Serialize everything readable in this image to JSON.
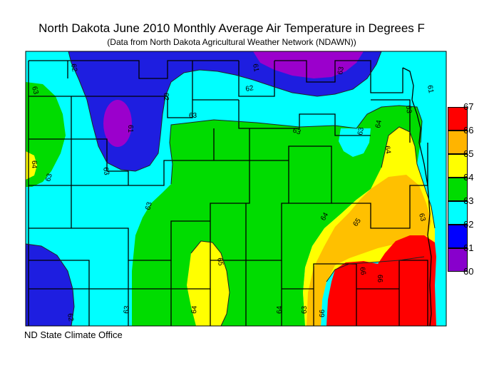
{
  "title": "North Dakota June 2010 Monthly Average Air Temperature in Degrees F",
  "subtitle": "(Data from North Dakota Agricultural Weather Network (NDAWN))",
  "credit": "ND State Climate Office",
  "legend": {
    "ticks": [
      "67",
      "66",
      "65",
      "64",
      "63",
      "62",
      "61",
      "60"
    ],
    "colors": [
      "#ff0000",
      "#ffb400",
      "#ffff00",
      "#00dc00",
      "#00ffff",
      "#0000ff",
      "#8800cc"
    ]
  },
  "contour_labels": [
    "62",
    "63",
    "63",
    "61",
    "62",
    "61",
    "63",
    "62",
    "61",
    "64",
    "63",
    "63",
    "63",
    "63",
    "63",
    "64",
    "63",
    "64",
    "65",
    "65",
    "66",
    "66",
    "64",
    "63",
    "62",
    "63",
    "64",
    "64",
    "63",
    "66"
  ],
  "zone_colors": {
    "z60": "#9b00cc",
    "z61": "#1e1ee0",
    "z62": "#1e1ee0",
    "z63": "#00ffff",
    "z64": "#00dc00",
    "z65": "#ffff00",
    "z66": "#ffc000",
    "z67": "#ff0000"
  }
}
